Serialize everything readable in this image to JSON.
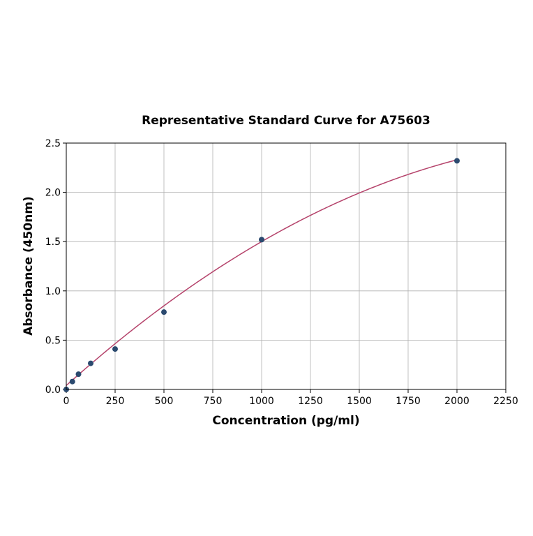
{
  "chart_data": {
    "type": "scatter",
    "title": "Representative Standard Curve for A75603",
    "xlabel": "Concentration (pg/ml)",
    "ylabel": "Absorbance (450nm)",
    "xlim": [
      0,
      2250
    ],
    "ylim": [
      0,
      2.5
    ],
    "xticks": [
      0,
      250,
      500,
      750,
      1000,
      1250,
      1500,
      1750,
      2000,
      2250
    ],
    "yticks": [
      0.0,
      0.5,
      1.0,
      1.5,
      2.0,
      2.5
    ],
    "ytick_labels": [
      "0.0",
      "0.5",
      "1.0",
      "1.5",
      "2.0",
      "2.5"
    ],
    "grid": true,
    "points": {
      "x": [
        0,
        31.25,
        62.5,
        125,
        250,
        500,
        1000,
        2000
      ],
      "y": [
        0.0,
        0.08,
        0.155,
        0.265,
        0.41,
        0.785,
        1.52,
        2.32
      ],
      "color": "#2b4a6f"
    },
    "fit_curve": {
      "type": "quadratic",
      "coefficients": [
        0.04,
        0.001775,
        -3.15e-07
      ],
      "x_range": [
        0,
        2000
      ],
      "color": "#b5436b"
    }
  }
}
